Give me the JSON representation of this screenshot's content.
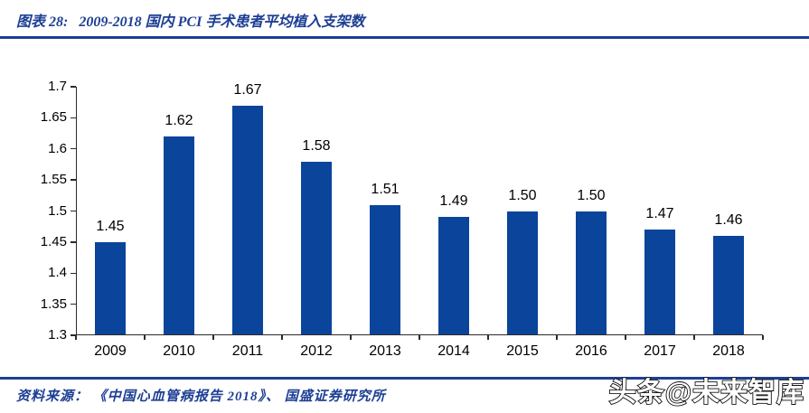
{
  "header": {
    "figure_label": "图表 28:",
    "figure_title": "2009-2018 国内 PCI 手术患者平均植入支架数"
  },
  "footer": {
    "source": "资料来源： 《中国心血管病报告 2018》、 国盛证券研究所"
  },
  "watermark": "头条@未来智库",
  "colors": {
    "accent": "#1d3f94",
    "bar": "#0a449b",
    "axis": "#2b2b2b",
    "label": "#000000"
  },
  "chart_data": {
    "type": "bar",
    "title": "2009-2018 国内 PCI 手术患者平均植入支架数",
    "categories": [
      "2009",
      "2010",
      "2011",
      "2012",
      "2013",
      "2014",
      "2015",
      "2016",
      "2017",
      "2018"
    ],
    "values": [
      1.45,
      1.62,
      1.67,
      1.58,
      1.51,
      1.49,
      1.5,
      1.5,
      1.47,
      1.46
    ],
    "value_labels": [
      "1.45",
      "1.62",
      "1.67",
      "1.58",
      "1.51",
      "1.49",
      "1.50",
      "1.50",
      "1.47",
      "1.46"
    ],
    "xlabel": "",
    "ylabel": "",
    "ylim": [
      1.3,
      1.7
    ],
    "ytick_step": 0.05,
    "ytick_labels": [
      "1.3",
      "1.35",
      "1.4",
      "1.45",
      "1.5",
      "1.55",
      "1.6",
      "1.65",
      "1.7"
    ],
    "grid": false,
    "legend": "none",
    "bar_color": "#0a449b"
  }
}
